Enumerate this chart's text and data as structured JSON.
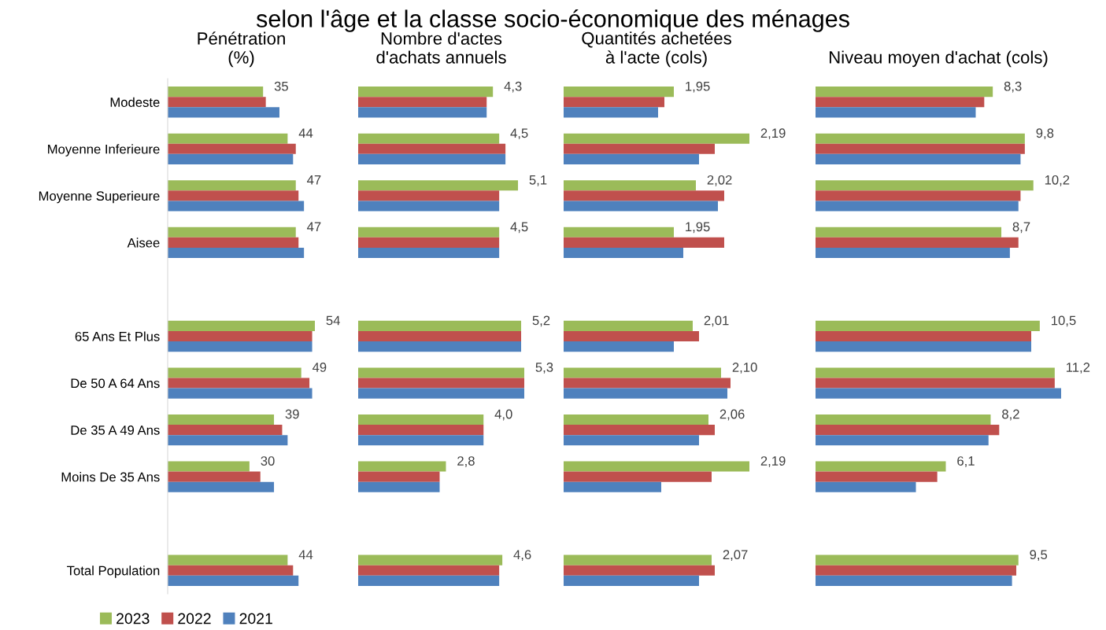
{
  "chart_data": [
    {
      "type": "bar",
      "orientation": "horizontal",
      "title": "Pénétration\n(%)",
      "annotations": [
        "selon l'âge et la classe socio-économique des ménages"
      ],
      "categories": [
        "Modeste",
        "Moyenne Inferieure",
        "Moyenne Superieure",
        "Aisee",
        null,
        "65 Ans Et Plus",
        "De 50 A 64 Ans",
        "De 35 A 49 Ans",
        "Moins De 35 Ans",
        null,
        "Total Population"
      ],
      "xlim": [
        0,
        54
      ],
      "tick_labels": "y",
      "legend": "bottom left",
      "grid": false,
      "series": [
        {
          "name": "2023",
          "color": "#9bbb59",
          "values": [
            35,
            44,
            47,
            47,
            null,
            54,
            49,
            39,
            30,
            null,
            44
          ],
          "value_labels": [
            "35",
            "44",
            "47",
            "47",
            null,
            "54",
            "49",
            "39",
            "30",
            null,
            "44"
          ]
        },
        {
          "name": "2022",
          "color": "#c0504d",
          "values": [
            36,
            47,
            48,
            48,
            null,
            53,
            52,
            42,
            34,
            null,
            46
          ]
        },
        {
          "name": "2021",
          "color": "#4f81bd",
          "values": [
            41,
            46,
            50,
            50,
            null,
            53,
            53,
            44,
            39,
            null,
            48
          ]
        }
      ]
    },
    {
      "type": "bar",
      "orientation": "horizontal",
      "title": "Nombre d'actes\nd'achats annuels",
      "categories": [
        null,
        null,
        null,
        null,
        null,
        null,
        null,
        null,
        null,
        null,
        null
      ],
      "xlim": [
        0,
        5.3
      ],
      "tick_labels": false,
      "grid": false,
      "series": [
        {
          "name": "2023",
          "color": "#9bbb59",
          "values": [
            4.3,
            4.5,
            5.1,
            4.5,
            null,
            5.2,
            5.3,
            4.0,
            2.8,
            null,
            4.6
          ],
          "value_labels": [
            "4,3",
            "4,5",
            "5,1",
            "4,5",
            null,
            "5,2",
            "5,3",
            "4,0",
            "2,8",
            null,
            "4,6"
          ]
        },
        {
          "name": "2022",
          "color": "#c0504d",
          "values": [
            4.1,
            4.7,
            4.5,
            4.5,
            null,
            5.2,
            5.3,
            4.0,
            2.6,
            null,
            4.5
          ]
        },
        {
          "name": "2021",
          "color": "#4f81bd",
          "values": [
            4.1,
            4.7,
            4.5,
            4.5,
            null,
            5.2,
            5.3,
            4.0,
            2.6,
            null,
            4.5
          ]
        }
      ]
    },
    {
      "type": "bar",
      "orientation": "horizontal",
      "title": "Quantités achetées\nà l'acte (cols)",
      "categories": [
        null,
        null,
        null,
        null,
        null,
        null,
        null,
        null,
        null,
        null,
        null
      ],
      "xlim": [
        1.6,
        2.19
      ],
      "tick_labels": false,
      "grid": false,
      "series": [
        {
          "name": "2023",
          "color": "#9bbb59",
          "values": [
            1.95,
            2.19,
            2.02,
            1.95,
            null,
            2.01,
            2.1,
            2.06,
            2.19,
            null,
            2.07
          ],
          "value_labels": [
            "1,95",
            "2,19",
            "2,02",
            "1,95",
            null,
            "2,01",
            "2,10",
            "2,06",
            "2,19",
            null,
            "2,07"
          ]
        },
        {
          "name": "2022",
          "color": "#c0504d",
          "values": [
            1.92,
            2.08,
            2.11,
            2.11,
            null,
            2.03,
            2.13,
            2.08,
            2.07,
            null,
            2.08
          ]
        },
        {
          "name": "2021",
          "color": "#4f81bd",
          "values": [
            1.9,
            2.03,
            2.09,
            1.98,
            null,
            1.95,
            2.12,
            2.03,
            1.91,
            null,
            2.03
          ]
        }
      ]
    },
    {
      "type": "bar",
      "orientation": "horizontal",
      "title": "Niveau moyen d'achat (cols)",
      "categories": [
        null,
        null,
        null,
        null,
        null,
        null,
        null,
        null,
        null,
        null,
        null
      ],
      "xlim": [
        0,
        11.5
      ],
      "tick_labels": false,
      "grid": false,
      "series": [
        {
          "name": "2023",
          "color": "#9bbb59",
          "values": [
            8.3,
            9.8,
            10.2,
            8.7,
            null,
            10.5,
            11.2,
            8.2,
            6.1,
            null,
            9.5
          ],
          "value_labels": [
            "8,3",
            "9,8",
            "10,2",
            "8,7",
            null,
            "10,5",
            "11,2",
            "8,2",
            "6,1",
            null,
            "9,5"
          ]
        },
        {
          "name": "2022",
          "color": "#c0504d",
          "values": [
            7.9,
            9.8,
            9.6,
            9.5,
            null,
            10.1,
            11.2,
            8.6,
            5.7,
            null,
            9.4
          ]
        },
        {
          "name": "2021",
          "color": "#4f81bd",
          "values": [
            7.5,
            9.6,
            9.5,
            9.1,
            null,
            10.1,
            11.5,
            8.1,
            4.7,
            null,
            9.2
          ]
        }
      ]
    }
  ]
}
